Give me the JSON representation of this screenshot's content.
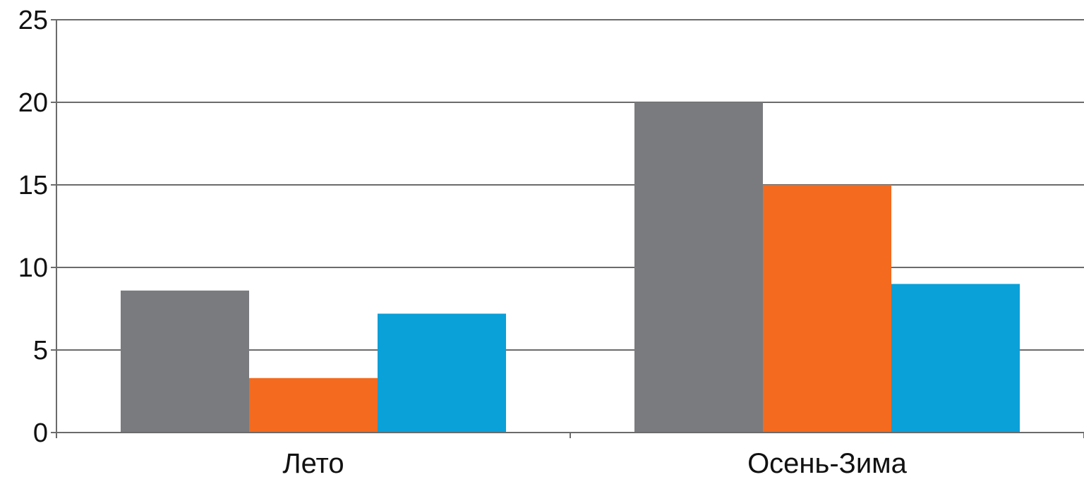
{
  "chart_data": {
    "type": "bar",
    "title": "",
    "xlabel": "",
    "ylabel": "",
    "categories": [
      "Лето",
      "Осень-Зима"
    ],
    "series": [
      {
        "values": [
          8.6,
          20
        ],
        "color": "#7a7b7f"
      },
      {
        "values": [
          3.3,
          15
        ],
        "color": "#f46a1e"
      },
      {
        "values": [
          7.2,
          9
        ],
        "color": "#0aa0d8"
      }
    ],
    "ylim": [
      0,
      25
    ],
    "yticks": [
      0,
      5,
      10,
      15,
      20,
      25
    ],
    "grid": true,
    "legend": "none"
  }
}
